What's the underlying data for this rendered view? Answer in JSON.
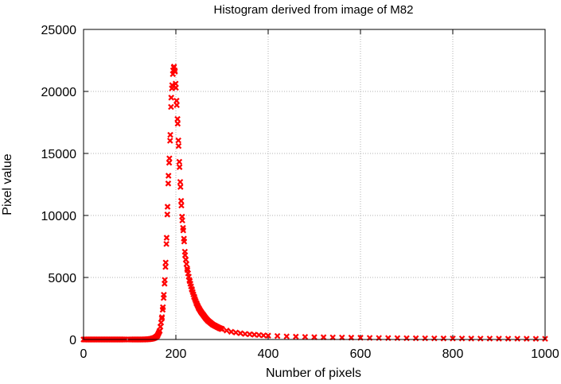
{
  "chart_data": {
    "type": "scatter",
    "title": "Histogram derived from image of M82",
    "xlabel": "Number of pixels",
    "ylabel": "Pixel value",
    "xlim": [
      0,
      1000
    ],
    "ylim": [
      0,
      25000
    ],
    "xticks": [
      0,
      200,
      400,
      600,
      800,
      1000
    ],
    "yticks": [
      0,
      5000,
      10000,
      15000,
      20000,
      25000
    ],
    "grid": true,
    "legend": "none",
    "marker": "x",
    "colors": {
      "points": "#ff0000",
      "grid": "#b0b0b0",
      "axes": "#000000"
    },
    "series": [
      {
        "x": [
          0,
          5,
          10,
          15,
          20,
          25,
          30,
          35,
          40,
          45,
          50,
          55,
          60,
          65,
          70,
          75,
          80,
          85,
          90,
          100,
          105,
          110,
          115,
          120,
          125,
          130,
          135,
          140,
          145,
          150,
          155,
          160,
          165,
          170,
          172,
          174,
          176,
          178,
          180,
          182,
          184,
          186,
          188,
          190,
          192,
          194,
          196,
          198,
          200,
          202,
          204,
          206,
          208,
          210,
          212,
          214,
          216,
          218,
          220,
          225,
          230,
          235,
          240,
          245,
          250,
          255,
          260,
          265,
          270,
          275,
          280,
          285,
          290,
          295,
          300,
          310,
          320,
          330,
          340,
          350,
          360,
          370,
          380,
          390,
          400,
          420,
          440,
          460,
          480,
          500,
          520,
          540,
          560,
          580,
          600,
          620,
          640,
          660,
          680,
          700,
          720,
          740,
          760,
          780,
          800,
          820,
          840,
          860,
          880,
          900,
          920,
          940,
          960,
          980,
          1000
        ],
        "y": [
          0,
          0,
          0,
          0,
          0,
          0,
          0,
          0,
          0,
          0,
          0,
          0,
          0,
          0,
          0,
          0,
          0,
          0,
          0,
          0,
          0,
          0,
          0,
          0,
          0,
          0,
          10,
          20,
          40,
          80,
          150,
          300,
          700,
          1800,
          2600,
          3600,
          4800,
          6200,
          8200,
          10700,
          13200,
          14600,
          16500,
          19500,
          20500,
          21700,
          22000,
          21600,
          20300,
          18900,
          17400,
          15600,
          13900,
          12300,
          10800,
          9600,
          8800,
          7900,
          6800,
          5600,
          4700,
          4000,
          3400,
          2900,
          2500,
          2200,
          1950,
          1700,
          1500,
          1350,
          1200,
          1100,
          1000,
          910,
          840,
          720,
          620,
          560,
          500,
          450,
          420,
          390,
          360,
          330,
          310,
          280,
          250,
          230,
          210,
          190,
          180,
          170,
          160,
          150,
          140,
          130,
          120,
          115,
          110,
          105,
          100,
          95,
          90,
          85,
          80,
          78,
          75,
          72,
          70,
          68,
          65,
          62,
          60,
          58,
          55
        ]
      }
    ]
  }
}
